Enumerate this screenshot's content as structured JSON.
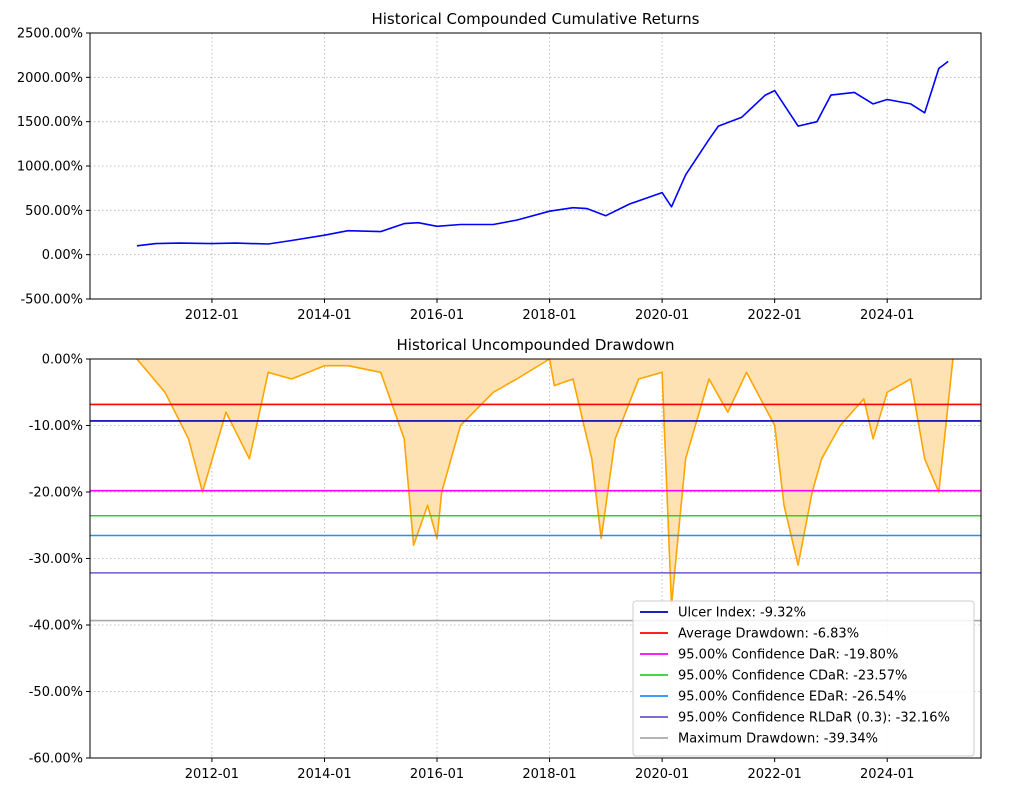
{
  "chart_data": [
    {
      "type": "line",
      "title": "Historical Compounded Cumulative Returns",
      "xlabel": "",
      "ylabel": "",
      "x_ticks": [
        "2012-01",
        "2014-01",
        "2016-01",
        "2018-01",
        "2020-01",
        "2022-01",
        "2024-01"
      ],
      "y_ticks": [
        "-500.00%",
        "0.00%",
        "500.00%",
        "1000.00%",
        "1500.00%",
        "2000.00%",
        "2500.00%"
      ],
      "ylim": [
        -500,
        2500
      ],
      "xlim": [
        "2009-11",
        "2025-09"
      ],
      "grid": true,
      "line_color": "#0000ff",
      "series": [
        {
          "x": [
            "2010-09",
            "2011-01",
            "2011-06",
            "2012-01",
            "2012-06",
            "2013-01",
            "2013-06",
            "2014-01",
            "2014-06",
            "2015-01",
            "2015-06",
            "2015-09",
            "2016-01",
            "2016-06",
            "2017-01",
            "2017-06",
            "2018-01",
            "2018-06",
            "2018-09",
            "2019-01",
            "2019-06",
            "2020-01",
            "2020-03",
            "2020-06",
            "2020-11",
            "2021-01",
            "2021-06",
            "2021-11",
            "2022-01",
            "2022-06",
            "2022-10",
            "2023-01",
            "2023-06",
            "2023-10",
            "2024-01",
            "2024-06",
            "2024-09",
            "2024-12",
            "2025-02"
          ],
          "values": [
            100,
            125,
            130,
            125,
            130,
            120,
            160,
            220,
            270,
            260,
            350,
            360,
            320,
            340,
            340,
            390,
            490,
            530,
            520,
            440,
            570,
            700,
            540,
            900,
            1300,
            1450,
            1550,
            1800,
            1850,
            1450,
            1500,
            1800,
            1830,
            1700,
            1750,
            1700,
            1600,
            2100,
            2180
          ]
        }
      ]
    },
    {
      "type": "area",
      "title": "Historical Uncompounded Drawdown",
      "xlabel": "",
      "ylabel": "",
      "x_ticks": [
        "2012-01",
        "2014-01",
        "2016-01",
        "2018-01",
        "2020-01",
        "2022-01",
        "2024-01"
      ],
      "y_ticks": [
        "-60.00%",
        "-50.00%",
        "-40.00%",
        "-30.00%",
        "-20.00%",
        "-10.00%",
        "0.00%"
      ],
      "ylim": [
        -60,
        0
      ],
      "xlim": [
        "2009-11",
        "2025-09"
      ],
      "grid": true,
      "line_color": "#ffa500",
      "fill_color": "#ffe2b3",
      "series": [
        {
          "x": [
            "2010-09",
            "2011-03",
            "2011-08",
            "2011-11",
            "2012-04",
            "2012-09",
            "2013-01",
            "2013-06",
            "2014-01",
            "2014-06",
            "2015-01",
            "2015-06",
            "2015-08",
            "2015-11",
            "2016-01",
            "2016-02",
            "2016-06",
            "2017-01",
            "2017-06",
            "2018-01",
            "2018-02",
            "2018-06",
            "2018-10",
            "2018-12",
            "2019-03",
            "2019-08",
            "2020-01",
            "2020-03",
            "2020-06",
            "2020-11",
            "2021-03",
            "2021-07",
            "2022-01",
            "2022-03",
            "2022-06",
            "2022-09",
            "2022-11",
            "2023-03",
            "2023-08",
            "2023-10",
            "2024-01",
            "2024-06",
            "2024-09",
            "2024-12",
            "2025-03"
          ],
          "values": [
            0,
            -5,
            -12,
            -20,
            -8,
            -15,
            -2,
            -3,
            -1,
            -1,
            -2,
            -12,
            -28,
            -22,
            -27,
            -20,
            -10,
            -5,
            -3,
            0,
            -4,
            -3,
            -15,
            -27,
            -12,
            -3,
            -2,
            -37,
            -15,
            -3,
            -8,
            -2,
            -10,
            -22,
            -31,
            -20,
            -15,
            -10,
            -6,
            -12,
            -5,
            -3,
            -15,
            -20,
            0
          ]
        }
      ],
      "legend_position": "lower-right",
      "legend": [
        {
          "label": "Ulcer Index: -9.32%",
          "value": -9.32,
          "color": "#0000b3"
        },
        {
          "label": "Average Drawdown: -6.83%",
          "value": -6.83,
          "color": "#ff0000"
        },
        {
          "label": "95.00% Confidence DaR: -19.80%",
          "value": -19.8,
          "color": "#ff00ff"
        },
        {
          "label": "95.00% Confidence CDaR: -23.57%",
          "value": -23.57,
          "color": "#32cd32"
        },
        {
          "label": "95.00% Confidence EDaR: -26.54%",
          "value": -26.54,
          "color": "#1e90ff"
        },
        {
          "label": "95.00% Confidence RLDaR (0.3): -32.16%",
          "value": -32.16,
          "color": "#6a5acd"
        },
        {
          "label": "Maximum Drawdown: -39.34%",
          "value": -39.34,
          "color": "#a9a9a9"
        }
      ]
    }
  ]
}
